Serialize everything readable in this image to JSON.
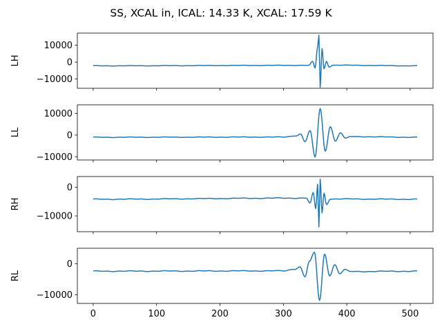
{
  "chart_data": {
    "type": "line",
    "title": "SS, XCAL in, ICAL: 14.33 K, XCAL: 17.59 K",
    "xlim": [
      -25,
      536
    ],
    "x_ticks": [
      0,
      100,
      200,
      300,
      400,
      500
    ],
    "x_ticks_labelled_on": "bottom panel only",
    "line_color": "#1f77b4",
    "n_samples": 512,
    "panels": [
      {
        "ylabel": "LH",
        "ylim": [
          -15500,
          17200
        ],
        "y_ticks": [
          -10000,
          0,
          10000
        ],
        "series": {
          "baseline": -2200,
          "features": [
            {
              "x": 340,
              "value": -1900
            },
            {
              "x": 346,
              "value": 300
            },
            {
              "x": 350,
              "value": -3500
            },
            {
              "x": 354,
              "value": 9000
            },
            {
              "x": 356,
              "value": 16000
            },
            {
              "x": 358,
              "value": -14900
            },
            {
              "x": 361,
              "value": 8000
            },
            {
              "x": 364,
              "value": -4000
            },
            {
              "x": 368,
              "value": 500
            },
            {
              "x": 372,
              "value": -2800
            },
            {
              "x": 378,
              "value": -1800
            }
          ]
        }
      },
      {
        "ylabel": "LL",
        "ylim": [
          -11500,
          14000
        ],
        "y_ticks": [
          -10000,
          0,
          10000
        ],
        "series": {
          "baseline": -1000,
          "features": [
            {
              "x": 300,
              "value": -900
            },
            {
              "x": 320,
              "value": -300
            },
            {
              "x": 327,
              "value": 500
            },
            {
              "x": 334,
              "value": -3000
            },
            {
              "x": 342,
              "value": 2000
            },
            {
              "x": 350,
              "value": -10200
            },
            {
              "x": 358,
              "value": 12300
            },
            {
              "x": 366,
              "value": -7400
            },
            {
              "x": 374,
              "value": 4000
            },
            {
              "x": 382,
              "value": -2800
            },
            {
              "x": 390,
              "value": 1100
            },
            {
              "x": 398,
              "value": -1500
            },
            {
              "x": 406,
              "value": -700
            }
          ]
        }
      },
      {
        "ylabel": "RH",
        "ylim": [
          -15500,
          3700
        ],
        "y_ticks": [
          -10000,
          0
        ],
        "series": {
          "baseline": -4200,
          "features": [
            {
              "x": 336,
              "value": -3800
            },
            {
              "x": 342,
              "value": -5600
            },
            {
              "x": 347,
              "value": -2000
            },
            {
              "x": 351,
              "value": -7500
            },
            {
              "x": 354,
              "value": 1000
            },
            {
              "x": 356,
              "value": -13800
            },
            {
              "x": 358,
              "value": 2800
            },
            {
              "x": 361,
              "value": -9000
            },
            {
              "x": 364,
              "value": -2100
            },
            {
              "x": 368,
              "value": -6000
            },
            {
              "x": 374,
              "value": -4100
            }
          ]
        }
      },
      {
        "ylabel": "RL",
        "ylim": [
          -12800,
          5000
        ],
        "y_ticks": [
          -10000,
          0
        ],
        "series": {
          "baseline": -2400,
          "features": [
            {
              "x": 300,
              "value": -2300
            },
            {
              "x": 318,
              "value": -1700
            },
            {
              "x": 326,
              "value": -1000
            },
            {
              "x": 334,
              "value": -4200
            },
            {
              "x": 341,
              "value": 700
            },
            {
              "x": 349,
              "value": 3600
            },
            {
              "x": 357,
              "value": -11800
            },
            {
              "x": 365,
              "value": 3100
            },
            {
              "x": 373,
              "value": -3800
            },
            {
              "x": 381,
              "value": -300
            },
            {
              "x": 389,
              "value": -3200
            },
            {
              "x": 397,
              "value": -1900
            },
            {
              "x": 405,
              "value": -2500
            }
          ]
        }
      }
    ]
  }
}
